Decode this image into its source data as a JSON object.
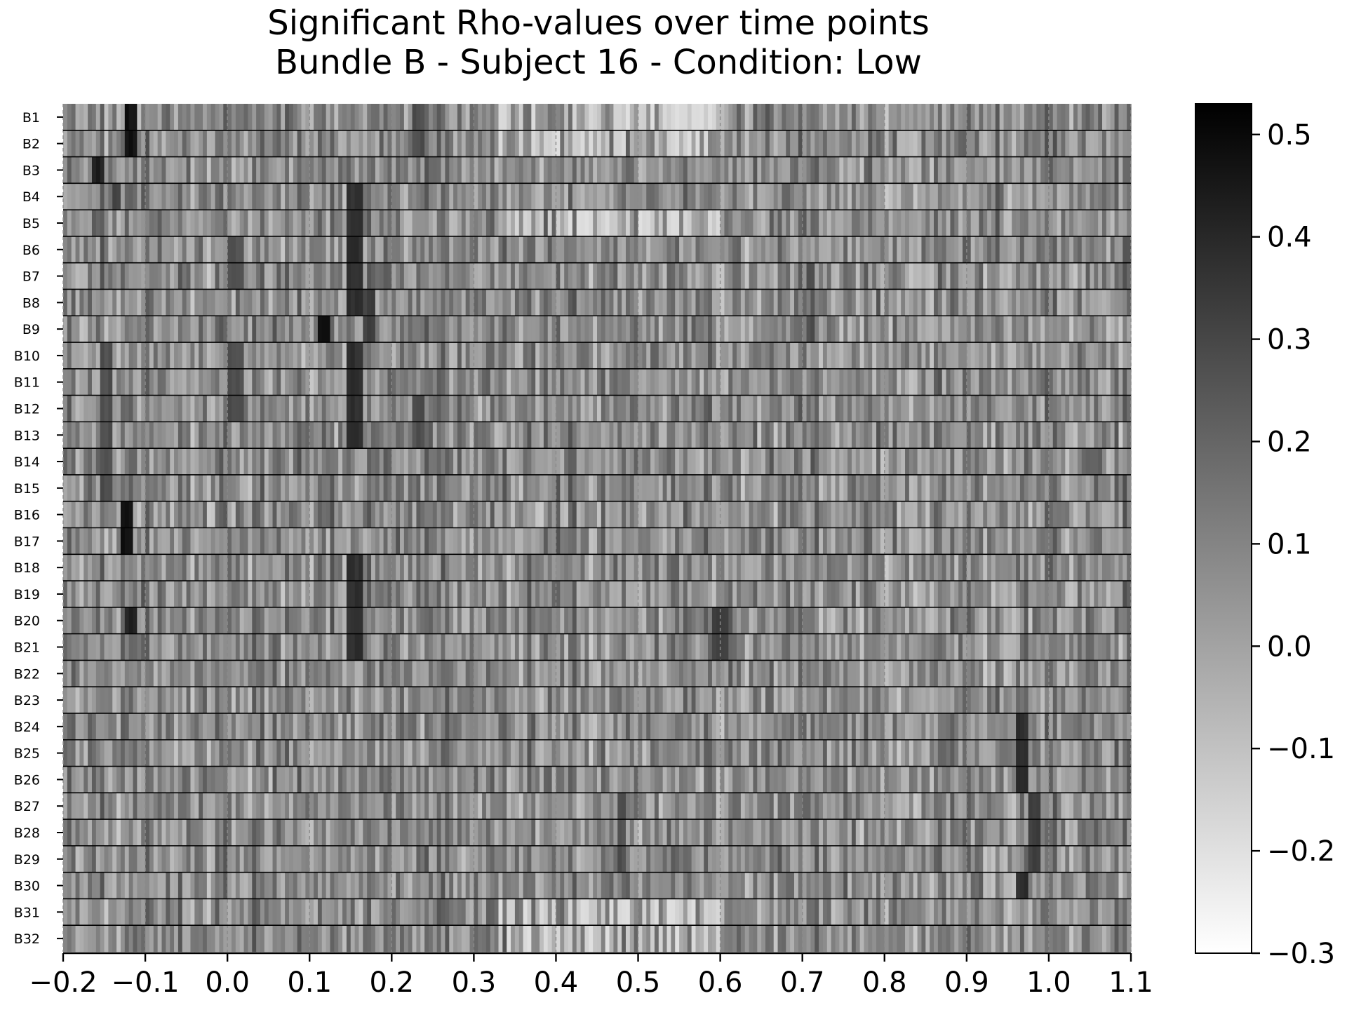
{
  "chart_data": {
    "type": "heatmap",
    "title": "Significant Rho-values over time points",
    "subtitle": "Bundle B - Subject 16 - Condition: Low",
    "xlabel": "",
    "ylabel": "",
    "rows": [
      "B1",
      "B2",
      "B3",
      "B4",
      "B5",
      "B6",
      "B7",
      "B8",
      "B9",
      "B10",
      "B11",
      "B12",
      "B13",
      "B14",
      "B15",
      "B16",
      "B17",
      "B18",
      "B19",
      "B20",
      "B21",
      "B22",
      "B23",
      "B24",
      "B25",
      "B26",
      "B27",
      "B28",
      "B29",
      "B30",
      "B31",
      "B32"
    ],
    "xlim": [
      -0.2,
      1.1
    ],
    "xticks": [
      -0.2,
      -0.1,
      0.0,
      0.1,
      0.2,
      0.3,
      0.4,
      0.5,
      0.6,
      0.7,
      0.8,
      0.9,
      1.0,
      1.1
    ],
    "xtick_labels": [
      "−0.2",
      "−0.1",
      "0.0",
      "0.1",
      "0.2",
      "0.3",
      "0.4",
      "0.5",
      "0.6",
      "0.7",
      "0.8",
      "0.9",
      "1.0",
      "1.1"
    ],
    "x_time_step": 0.005,
    "vertical_gridlines": "dashed grey at each x tick",
    "horizontal_separators": "black line between every row",
    "colormap": "greys",
    "color_low": "#ffffff",
    "color_high": "#000000",
    "vmin": -0.3,
    "vmax": 0.53,
    "colorbar_ticks": [
      0.5,
      0.4,
      0.3,
      0.2,
      0.1,
      0.0,
      -0.1,
      -0.2,
      -0.3
    ],
    "colorbar_tick_labels": [
      "0.5",
      "0.4",
      "0.3",
      "0.2",
      "0.1",
      "0.0",
      "−0.1",
      "−0.2",
      "−0.3"
    ],
    "colorbar_position": "right",
    "features": [
      {
        "t": -0.12,
        "v": 0.5,
        "rows": [
          "B1",
          "B2"
        ]
      },
      {
        "t": -0.16,
        "v": 0.45,
        "rows": [
          "B3"
        ]
      },
      {
        "t": -0.135,
        "v": 0.35,
        "rows": [
          "B4"
        ]
      },
      {
        "t": 0.155,
        "v": 0.4,
        "rows": [
          "B4",
          "B5",
          "B6",
          "B7",
          "B8",
          "B10",
          "B11",
          "B12",
          "B13",
          "B18",
          "B19",
          "B20",
          "B21"
        ]
      },
      {
        "t": 0.115,
        "v": 0.52,
        "rows": [
          "B9"
        ]
      },
      {
        "t": 0.17,
        "v": 0.35,
        "rows": [
          "B8",
          "B9"
        ]
      },
      {
        "t": -0.125,
        "v": 0.5,
        "rows": [
          "B16",
          "B17"
        ]
      },
      {
        "t": -0.12,
        "v": 0.45,
        "rows": [
          "B20"
        ]
      },
      {
        "t": 0.6,
        "v": 0.35,
        "rows": [
          "B20",
          "B21"
        ]
      },
      {
        "t": 0.97,
        "v": 0.4,
        "rows": [
          "B24",
          "B25",
          "B26",
          "B30"
        ]
      },
      {
        "t": 0.985,
        "v": 0.35,
        "rows": [
          "B27",
          "B28",
          "B29"
        ]
      },
      {
        "t": 0.71,
        "v": 0.3,
        "rows": [
          "B7",
          "B9"
        ]
      },
      {
        "t": -0.15,
        "v": 0.3,
        "rows": [
          "B10",
          "B11",
          "B12",
          "B13",
          "B14",
          "B15"
        ]
      },
      {
        "t": 0.23,
        "v": 0.3,
        "rows": [
          "B1",
          "B2",
          "B12",
          "B13"
        ]
      },
      {
        "t": 0.48,
        "v": 0.3,
        "rows": [
          "B27",
          "B28",
          "B29"
        ]
      },
      {
        "t": 0.01,
        "v": 0.3,
        "rows": [
          "B6",
          "B7",
          "B10",
          "B11",
          "B12"
        ]
      }
    ],
    "light_band": {
      "t_start": 0.33,
      "t_end": 0.6,
      "v": -0.2,
      "rows": [
        "B1",
        "B2",
        "B5",
        "B31",
        "B32"
      ]
    }
  }
}
